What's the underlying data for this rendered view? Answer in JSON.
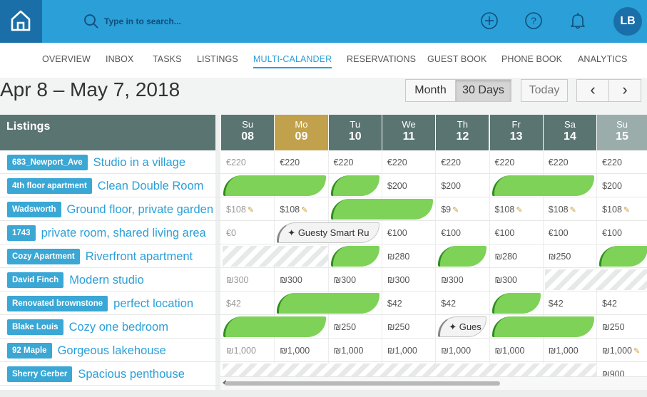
{
  "app": {
    "home_icon": "house-icon"
  },
  "search": {
    "placeholder": "Type in to search..."
  },
  "user": {
    "initials": "LB"
  },
  "nav": [
    "OVERVIEW",
    "INBOX",
    "TASKS",
    "LISTINGS",
    "MULTI-CALANDER",
    "RESERVATIONS",
    "GUEST BOOK",
    "PHONE BOOK",
    "ANALYTICS"
  ],
  "nav_active": "MULTI-CALANDER",
  "range_title": "Apr 8 – May 7, 2018",
  "buttons": {
    "month": "Month",
    "thirty_days": "30 Days",
    "today": "Today",
    "prev": "‹",
    "next": "›"
  },
  "view_active": "30 Days",
  "colors": {
    "brand": "#2a9fd8",
    "brand_dark": "#1a6fa8",
    "header": "#5a7472",
    "today_header": "#c1a14b",
    "booking": "#7ed258"
  },
  "calendar": {
    "listings_header": "Listings",
    "days": [
      {
        "dow": "Su",
        "num": "08"
      },
      {
        "dow": "Mo",
        "num": "09",
        "today": true
      },
      {
        "dow": "Tu",
        "num": "10"
      },
      {
        "dow": "We",
        "num": "11"
      },
      {
        "dow": "Th",
        "num": "12"
      },
      {
        "dow": "Fr",
        "num": "13"
      },
      {
        "dow": "Sa",
        "num": "14"
      },
      {
        "dow": "Su",
        "num": "15"
      }
    ],
    "rows": [
      {
        "badge": "683_Newport_Ave",
        "name": "Studio in a village",
        "prices": [
          {
            "d": 0,
            "v": "€220",
            "muted": true
          },
          {
            "d": 1,
            "v": "€220"
          },
          {
            "d": 2,
            "v": "€220"
          },
          {
            "d": 3,
            "v": "€220"
          },
          {
            "d": 4,
            "v": "€220"
          },
          {
            "d": 5,
            "v": "€220"
          },
          {
            "d": 6,
            "v": "€220"
          },
          {
            "d": 7,
            "v": "€220"
          }
        ],
        "bookings": [],
        "blocked": [],
        "guesty": []
      },
      {
        "badge": "4th floor apartment",
        "name": "Clean Double Room",
        "prices": [
          {
            "d": 3,
            "v": "$200"
          },
          {
            "d": 4,
            "v": "$200"
          },
          {
            "d": 7,
            "v": "$200"
          }
        ],
        "bookings": [
          {
            "s": 0,
            "e": 2
          },
          {
            "s": 2,
            "e": 3
          },
          {
            "s": 5,
            "e": 7
          }
        ],
        "blocked": [],
        "guesty": []
      },
      {
        "badge": "Wadsworth",
        "name": "Ground floor, private garden",
        "prices": [
          {
            "d": 0,
            "v": "$108",
            "muted": true,
            "note": true
          },
          {
            "d": 1,
            "v": "$108",
            "note": true
          },
          {
            "d": 4,
            "v": "$9",
            "note": true
          },
          {
            "d": 5,
            "v": "$108",
            "note": true
          },
          {
            "d": 6,
            "v": "$108",
            "note": true
          },
          {
            "d": 7,
            "v": "$108",
            "note": true
          }
        ],
        "bookings": [
          {
            "s": 2,
            "e": 4
          }
        ],
        "blocked": [],
        "guesty": []
      },
      {
        "badge": "1743",
        "name": "private room, shared living area",
        "prices": [
          {
            "d": 0,
            "v": "€0",
            "muted": true
          },
          {
            "d": 3,
            "v": "€100"
          },
          {
            "d": 4,
            "v": "€100"
          },
          {
            "d": 5,
            "v": "€100"
          },
          {
            "d": 6,
            "v": "€100"
          },
          {
            "d": 7,
            "v": "€100"
          }
        ],
        "bookings": [],
        "blocked": [],
        "guesty": [
          {
            "s": 1,
            "e": 3,
            "label": "Guesty Smart Ru"
          }
        ]
      },
      {
        "badge": "Cozy Apartment",
        "name": "Riverfront apartment",
        "prices": [
          {
            "d": 3,
            "v": "₪280"
          },
          {
            "d": 5,
            "v": "₪280"
          },
          {
            "d": 6,
            "v": "₪250"
          }
        ],
        "bookings": [
          {
            "s": 2,
            "e": 3
          },
          {
            "s": 4,
            "e": 5
          },
          {
            "s": 7,
            "e": 8
          }
        ],
        "blocked": [
          {
            "s": 0,
            "e": 2
          }
        ],
        "guesty": []
      },
      {
        "badge": "David Finch",
        "name": "Modern studio",
        "prices": [
          {
            "d": 0,
            "v": "₪300",
            "muted": true
          },
          {
            "d": 1,
            "v": "₪300"
          },
          {
            "d": 2,
            "v": "₪300"
          },
          {
            "d": 3,
            "v": "₪300"
          },
          {
            "d": 4,
            "v": "₪300"
          },
          {
            "d": 5,
            "v": "₪300"
          }
        ],
        "bookings": [],
        "blocked": [
          {
            "s": 6,
            "e": 8
          }
        ],
        "guesty": []
      },
      {
        "badge": "Renovated brownstone",
        "name": "perfect location",
        "prices": [
          {
            "d": 0,
            "v": "$42",
            "muted": true
          },
          {
            "d": 3,
            "v": "$42"
          },
          {
            "d": 4,
            "v": "$42"
          },
          {
            "d": 6,
            "v": "$42"
          },
          {
            "d": 7,
            "v": "$42"
          }
        ],
        "bookings": [
          {
            "s": 1,
            "e": 3
          },
          {
            "s": 5,
            "e": 6
          }
        ],
        "blocked": [],
        "guesty": []
      },
      {
        "badge": "Blake Louis",
        "name": "Cozy one bedroom",
        "prices": [
          {
            "d": 2,
            "v": "₪250"
          },
          {
            "d": 3,
            "v": "₪250"
          },
          {
            "d": 7,
            "v": "₪250"
          }
        ],
        "bookings": [
          {
            "s": 0,
            "e": 2
          },
          {
            "s": 5,
            "e": 7
          }
        ],
        "blocked": [],
        "guesty": [
          {
            "s": 4,
            "e": 5,
            "label": "Gues"
          }
        ]
      },
      {
        "badge": "92 Maple",
        "name": "Gorgeous lakehouse",
        "prices": [
          {
            "d": 0,
            "v": "₪1,000",
            "muted": true
          },
          {
            "d": 1,
            "v": "₪1,000"
          },
          {
            "d": 2,
            "v": "₪1,000"
          },
          {
            "d": 3,
            "v": "₪1,000"
          },
          {
            "d": 4,
            "v": "₪1,000"
          },
          {
            "d": 5,
            "v": "₪1,000"
          },
          {
            "d": 6,
            "v": "₪1,000"
          },
          {
            "d": 7,
            "v": "₪1,000",
            "note": true
          }
        ],
        "bookings": [],
        "blocked": [],
        "guesty": []
      },
      {
        "badge": "Sherry Gerber",
        "name": "Spacious penthouse",
        "prices": [
          {
            "d": 7,
            "v": "₪900"
          }
        ],
        "bookings": [],
        "blocked": [
          {
            "s": 0,
            "e": 7
          }
        ],
        "guesty": []
      }
    ]
  }
}
